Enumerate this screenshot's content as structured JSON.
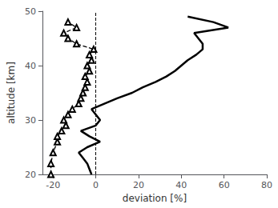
{
  "chart_data": {
    "type": "line",
    "xlabel": "deviation [%]",
    "ylabel": "altitude [km]",
    "xlim": [
      -25,
      80
    ],
    "ylim": [
      20,
      50
    ],
    "xticks": [
      -20,
      0,
      20,
      40,
      60,
      80
    ],
    "yticks": [
      20,
      30,
      40,
      50
    ],
    "grid": false,
    "series": [
      {
        "color": "#000000",
        "line_style": "solid",
        "x": [
          -2,
          -3,
          -4,
          -6,
          -8,
          -4,
          2,
          -3,
          -7,
          0,
          2,
          0,
          -2,
          4,
          10,
          17,
          22,
          28,
          33,
          37,
          40,
          43,
          47,
          50,
          50,
          48,
          46,
          62,
          55,
          43
        ],
        "y": [
          20,
          21,
          22,
          23,
          24,
          25,
          26,
          27,
          28,
          29,
          30,
          31,
          32,
          33,
          34,
          35,
          36,
          37,
          38,
          39,
          40,
          41,
          42,
          43,
          44,
          45,
          46,
          47,
          48,
          49
        ]
      },
      {
        "color": "#000000",
        "line_style": "dashed",
        "marker": "triangle",
        "x": [
          -21,
          -21,
          -20,
          -18,
          -18,
          -16,
          -14,
          -15,
          -13,
          -11,
          -8,
          -7,
          -6,
          -5,
          -4,
          -5,
          -3,
          -4,
          -2,
          -3,
          -1,
          -9,
          -13,
          -15,
          -9,
          -13
        ],
        "y": [
          20,
          22,
          24,
          26,
          27,
          28,
          29,
          30,
          31,
          32,
          33,
          34,
          35,
          36,
          37,
          38,
          39,
          40,
          41,
          42,
          43,
          44,
          45,
          46,
          47,
          48
        ]
      }
    ],
    "vlines": [
      {
        "x": 0,
        "color": "#000000",
        "line_style": "dashed"
      }
    ]
  }
}
